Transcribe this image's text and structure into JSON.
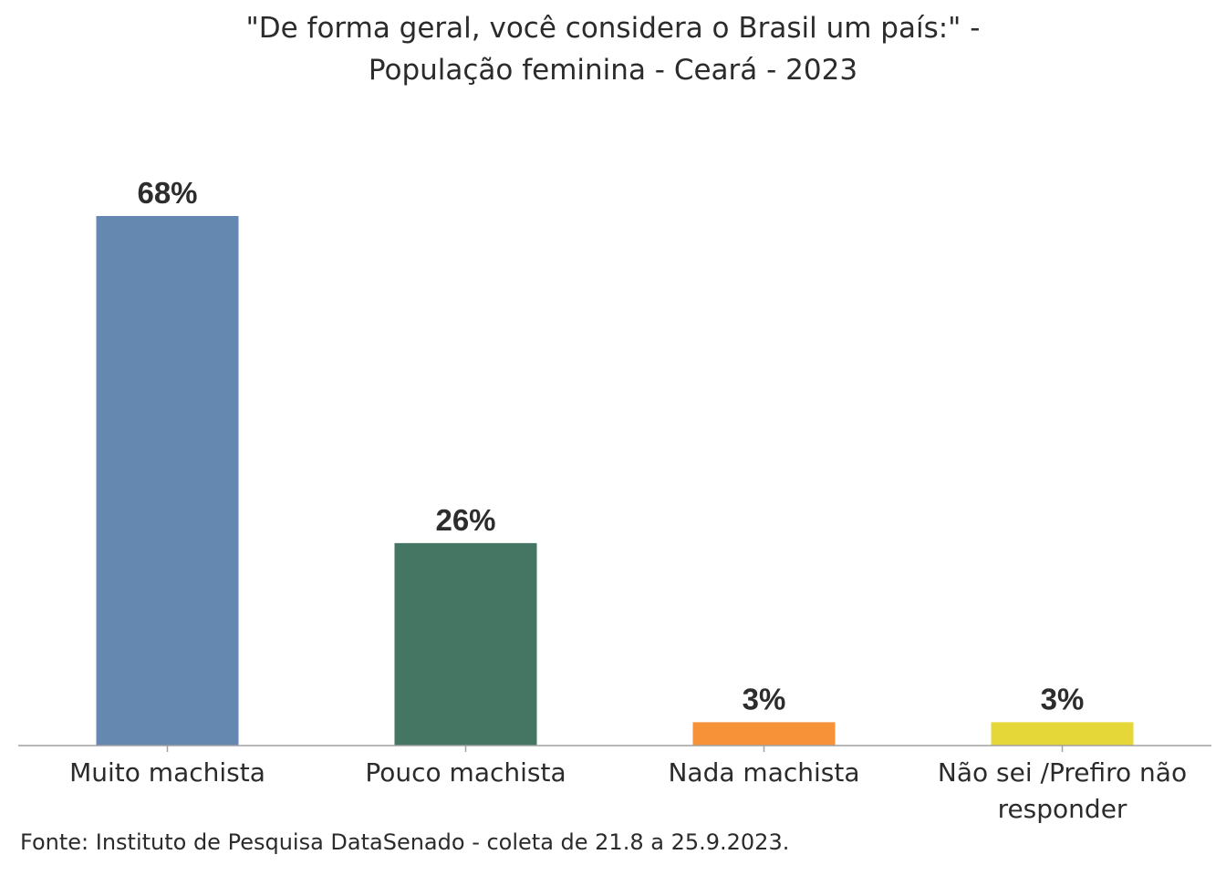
{
  "chart_data": {
    "type": "bar",
    "title_lines": [
      "\"De forma geral, você considera o Brasil um país:\" -",
      "População feminina - Ceará - 2023"
    ],
    "categories": [
      [
        "Muito machista"
      ],
      [
        "Pouco machista"
      ],
      [
        "Nada machista"
      ],
      [
        "Não sei /Prefiro não",
        "responder"
      ]
    ],
    "values": [
      68,
      26,
      3,
      3
    ],
    "value_labels": [
      "68%",
      "26%",
      "3%",
      "3%"
    ],
    "colors": [
      "#6588b0",
      "#457563",
      "#f79239",
      "#e5d737"
    ],
    "xlabel": "",
    "ylabel": "",
    "ylim": [
      0,
      68
    ],
    "grid": false,
    "legend": "none"
  },
  "source": "Fonte: Instituto de Pesquisa DataSenado - coleta de 21.8 a 25.9.2023."
}
